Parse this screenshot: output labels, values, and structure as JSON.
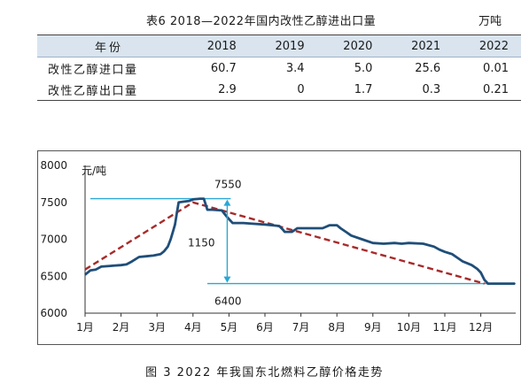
{
  "table": {
    "title": "表6  2018—2022年国内改性乙醇进出口量",
    "unit": "万吨",
    "header": [
      "年份",
      "2018",
      "2019",
      "2020",
      "2021",
      "2022"
    ],
    "rows": [
      [
        "改性乙醇进口量",
        "60.7",
        "3.4",
        "5.0",
        "25.6",
        "0.01"
      ],
      [
        "改性乙醇出口量",
        "2.9",
        "0",
        "1.7",
        "0.3",
        "0.21"
      ]
    ]
  },
  "figure_caption": "图 3  2022 年我国东北燃料乙醇价格走势",
  "chart_data": {
    "type": "line",
    "ylabel": "元/吨",
    "ylim": [
      6000,
      8000
    ],
    "y_ticks": [
      "8000",
      "7500",
      "7000",
      "6500",
      "6000"
    ],
    "x_ticks": [
      "1月",
      "2月",
      "3月",
      "4月",
      "5月",
      "6月",
      "7月",
      "8月",
      "9月",
      "10月",
      "11月",
      "12月"
    ],
    "annotations": {
      "high_label": "7550",
      "low_label": "6400",
      "diff_label": "1150",
      "high": 7550,
      "low": 6400
    },
    "series": [
      {
        "style": "solid",
        "color": "#1f4e79",
        "points": [
          [
            1.0,
            6520
          ],
          [
            1.15,
            6580
          ],
          [
            1.3,
            6590
          ],
          [
            1.45,
            6630
          ],
          [
            1.7,
            6640
          ],
          [
            2.0,
            6650
          ],
          [
            2.15,
            6660
          ],
          [
            2.3,
            6700
          ],
          [
            2.5,
            6760
          ],
          [
            2.7,
            6770
          ],
          [
            2.9,
            6780
          ],
          [
            3.1,
            6800
          ],
          [
            3.2,
            6840
          ],
          [
            3.3,
            6900
          ],
          [
            3.38,
            7000
          ],
          [
            3.44,
            7100
          ],
          [
            3.5,
            7200
          ],
          [
            3.55,
            7350
          ],
          [
            3.6,
            7500
          ],
          [
            3.75,
            7510
          ],
          [
            3.9,
            7520
          ],
          [
            4.0,
            7540
          ],
          [
            4.2,
            7550
          ],
          [
            4.3,
            7550
          ],
          [
            4.4,
            7400
          ],
          [
            4.55,
            7400
          ],
          [
            4.8,
            7390
          ],
          [
            4.95,
            7300
          ],
          [
            5.1,
            7220
          ],
          [
            5.4,
            7220
          ],
          [
            5.7,
            7210
          ],
          [
            6.0,
            7200
          ],
          [
            6.2,
            7190
          ],
          [
            6.4,
            7180
          ],
          [
            6.5,
            7130
          ],
          [
            6.55,
            7100
          ],
          [
            6.75,
            7100
          ],
          [
            6.9,
            7150
          ],
          [
            7.1,
            7150
          ],
          [
            7.4,
            7150
          ],
          [
            7.6,
            7150
          ],
          [
            7.8,
            7190
          ],
          [
            8.0,
            7190
          ],
          [
            8.1,
            7150
          ],
          [
            8.25,
            7100
          ],
          [
            8.4,
            7050
          ],
          [
            8.7,
            7000
          ],
          [
            9.0,
            6950
          ],
          [
            9.3,
            6940
          ],
          [
            9.6,
            6950
          ],
          [
            9.8,
            6940
          ],
          [
            10.0,
            6950
          ],
          [
            10.4,
            6940
          ],
          [
            10.7,
            6900
          ],
          [
            10.85,
            6860
          ],
          [
            11.0,
            6830
          ],
          [
            11.2,
            6800
          ],
          [
            11.35,
            6750
          ],
          [
            11.5,
            6700
          ],
          [
            11.6,
            6680
          ],
          [
            11.75,
            6650
          ],
          [
            11.9,
            6600
          ],
          [
            12.0,
            6550
          ],
          [
            12.1,
            6450
          ],
          [
            12.2,
            6400
          ],
          [
            12.6,
            6400
          ],
          [
            12.95,
            6400
          ]
        ]
      },
      {
        "style": "dashed",
        "color": "#a82a2a",
        "points": [
          [
            1.0,
            6590
          ],
          [
            4.0,
            7500
          ],
          [
            12.1,
            6400
          ]
        ]
      }
    ]
  }
}
